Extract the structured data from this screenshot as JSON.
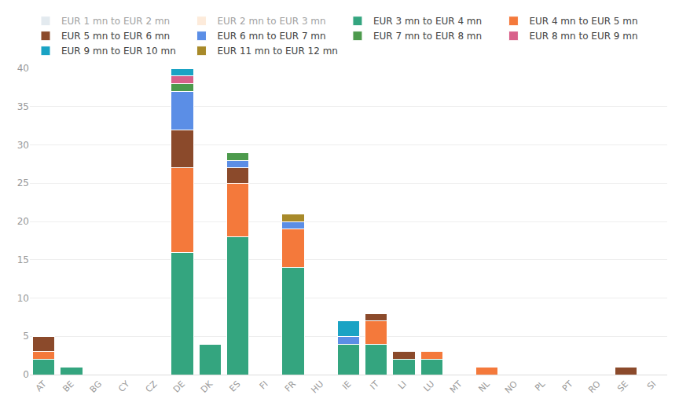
{
  "chart_data": {
    "type": "bar",
    "stacked": true,
    "grid": true,
    "legend": "top",
    "categories": [
      "AT",
      "BE",
      "BG",
      "CY",
      "CZ",
      "DE",
      "DK",
      "ES",
      "FI",
      "FR",
      "HU",
      "IE",
      "IT",
      "LI",
      "LU",
      "MT",
      "NL",
      "NO",
      "PL",
      "PT",
      "RO",
      "SE",
      "SI"
    ],
    "ylim": [
      0,
      40
    ],
    "yticks": [
      0,
      5,
      10,
      15,
      20,
      25,
      30,
      35,
      40
    ],
    "series": [
      {
        "name": "EUR 1 mn to EUR 2 mn",
        "color": "#c9d6e0",
        "values": [
          null,
          null,
          null,
          null,
          null,
          null,
          null,
          null,
          null,
          null,
          null,
          null,
          null,
          null,
          null,
          null,
          null,
          null,
          null,
          null,
          null,
          null,
          null
        ]
      },
      {
        "name": "EUR 2 mn to EUR 3 mn",
        "color": "#fcd9b8",
        "values": [
          null,
          null,
          null,
          null,
          null,
          null,
          null,
          null,
          null,
          null,
          null,
          null,
          null,
          null,
          null,
          null,
          null,
          null,
          null,
          null,
          null,
          null,
          null
        ]
      },
      {
        "name": "EUR 3 mn to EUR 4 mn",
        "color": "#34a57f",
        "values": [
          2,
          1,
          0,
          0,
          0,
          16,
          4,
          18,
          0,
          14,
          0,
          4,
          4,
          2,
          2,
          0,
          0,
          0,
          0,
          0,
          0,
          0,
          0
        ]
      },
      {
        "name": "EUR 4 mn to EUR 5 mn",
        "color": "#f4793b",
        "values": [
          1,
          0,
          0,
          0,
          0,
          11,
          0,
          7,
          0,
          5,
          0,
          0,
          3,
          0,
          1,
          0,
          1,
          0,
          0,
          0,
          0,
          0,
          0
        ]
      },
      {
        "name": "EUR 5 mn to EUR 6 mn",
        "color": "#8b4a2b",
        "values": [
          2,
          0,
          0,
          0,
          0,
          5,
          0,
          2,
          0,
          0,
          0,
          0,
          1,
          1,
          0,
          0,
          0,
          0,
          0,
          0,
          0,
          1,
          0
        ]
      },
      {
        "name": "EUR 6 mn to EUR 7 mn",
        "color": "#5b8ee6",
        "values": [
          0,
          0,
          0,
          0,
          0,
          5,
          0,
          1,
          0,
          1,
          0,
          1,
          0,
          0,
          0,
          0,
          0,
          0,
          0,
          0,
          0,
          0,
          0
        ]
      },
      {
        "name": "EUR 7 mn to EUR 8 mn",
        "color": "#4c9a4c",
        "values": [
          0,
          0,
          0,
          0,
          0,
          1,
          0,
          1,
          0,
          0,
          0,
          0,
          0,
          0,
          0,
          0,
          0,
          0,
          0,
          0,
          0,
          0,
          0
        ]
      },
      {
        "name": "EUR 8 mn to EUR 9 mn",
        "color": "#d8608a",
        "values": [
          0,
          0,
          0,
          0,
          0,
          1,
          0,
          0,
          0,
          0,
          0,
          0,
          0,
          0,
          0,
          0,
          0,
          0,
          0,
          0,
          0,
          0,
          0
        ]
      },
      {
        "name": "EUR 9 mn to EUR 10 mn",
        "color": "#1aa3c4",
        "values": [
          0,
          0,
          0,
          0,
          0,
          1,
          0,
          0,
          0,
          0,
          0,
          2,
          0,
          0,
          0,
          0,
          0,
          0,
          0,
          0,
          0,
          0,
          0
        ]
      },
      {
        "name": "EUR 11 mn to EUR 12 mn",
        "color": "#a88a2a",
        "values": [
          0,
          0,
          0,
          0,
          0,
          0,
          0,
          0,
          0,
          1,
          0,
          0,
          0,
          0,
          0,
          0,
          0,
          0,
          0,
          0,
          0,
          0,
          0
        ]
      }
    ]
  }
}
